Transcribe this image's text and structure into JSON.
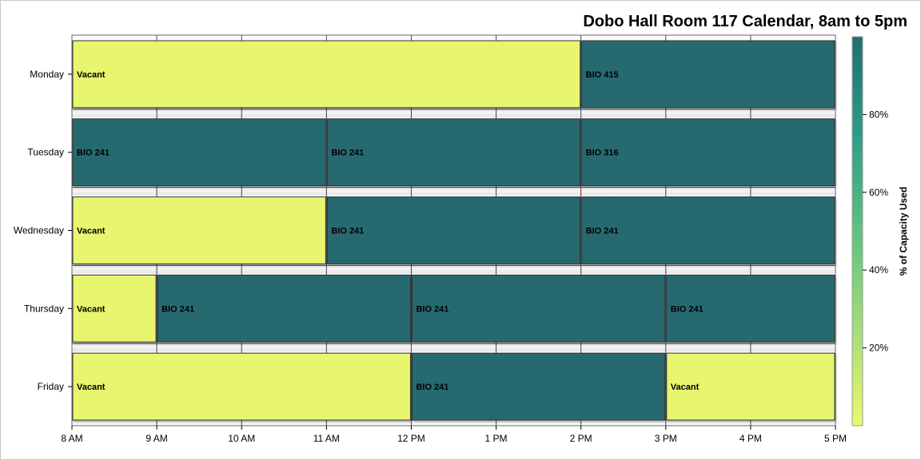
{
  "chart_data": {
    "type": "bar",
    "title": "Dobo Hall Room 117 Calendar, 8am to 5pm",
    "days": [
      "Monday",
      "Tuesday",
      "Wednesday",
      "Thursday",
      "Friday"
    ],
    "x_ticks": [
      "8 AM",
      "9 AM",
      "10 AM",
      "11 AM",
      "12 PM",
      "1 PM",
      "2 PM",
      "3 PM",
      "4 PM",
      "5 PM"
    ],
    "xlim": [
      8,
      17
    ],
    "grid": true,
    "bookings": [
      {
        "day": "Monday",
        "start": 8,
        "end": 14,
        "label": "Vacant",
        "capacity_used": 0
      },
      {
        "day": "Monday",
        "start": 14,
        "end": 17,
        "label": "BIO 415",
        "capacity_used": 100
      },
      {
        "day": "Tuesday",
        "start": 8,
        "end": 11,
        "label": "BIO 241",
        "capacity_used": 100
      },
      {
        "day": "Tuesday",
        "start": 11,
        "end": 14,
        "label": "BIO 241",
        "capacity_used": 100
      },
      {
        "day": "Tuesday",
        "start": 14,
        "end": 17,
        "label": "BIO 316",
        "capacity_used": 100
      },
      {
        "day": "Wednesday",
        "start": 8,
        "end": 11,
        "label": "Vacant",
        "capacity_used": 0
      },
      {
        "day": "Wednesday",
        "start": 11,
        "end": 14,
        "label": "BIO 241",
        "capacity_used": 100
      },
      {
        "day": "Wednesday",
        "start": 14,
        "end": 17,
        "label": "BIO 241",
        "capacity_used": 100
      },
      {
        "day": "Thursday",
        "start": 8,
        "end": 9,
        "label": "Vacant",
        "capacity_used": 0
      },
      {
        "day": "Thursday",
        "start": 9,
        "end": 12,
        "label": "BIO 241",
        "capacity_used": 100
      },
      {
        "day": "Thursday",
        "start": 12,
        "end": 15,
        "label": "BIO 241",
        "capacity_used": 100
      },
      {
        "day": "Thursday",
        "start": 15,
        "end": 17,
        "label": "BIO 241",
        "capacity_used": 100
      },
      {
        "day": "Friday",
        "start": 8,
        "end": 12,
        "label": "Vacant",
        "capacity_used": 0
      },
      {
        "day": "Friday",
        "start": 12,
        "end": 15,
        "label": "BIO 241",
        "capacity_used": 100
      },
      {
        "day": "Friday",
        "start": 15,
        "end": 17,
        "label": "Vacant",
        "capacity_used": 0
      }
    ],
    "legend": {
      "title": "% of Capacity Used",
      "ticks": [
        "20%",
        "40%",
        "60%",
        "80%"
      ],
      "tick_values": [
        20,
        40,
        60,
        80
      ],
      "range": [
        0,
        100
      ],
      "placement": "right"
    },
    "colors": {
      "vacant": "#e8f56e",
      "booked": "#256a70",
      "gradient": [
        "#eaf86c",
        "#a5dc79",
        "#5ec282",
        "#2c9c86",
        "#1f6f6f"
      ]
    }
  }
}
